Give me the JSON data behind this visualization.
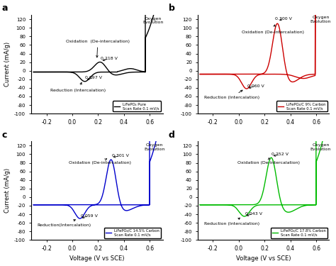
{
  "subplots": [
    {
      "label": "a",
      "color": "black",
      "legend_text": "LiFePO₄ Pure\nScan Rate 0.1 mV/s",
      "ox_voltage": "0.218 V",
      "red_voltage": "0.097 V",
      "ylim": [
        -100,
        130
      ],
      "yticks": [
        -100,
        -80,
        -60,
        -40,
        -20,
        0,
        20,
        40,
        60,
        80,
        100,
        120
      ]
    },
    {
      "label": "b",
      "color": "#cc0000",
      "legend_text": "LiFePO₄/C 9% Carbon\nScan Rate 0.1 mV/s",
      "ox_voltage": "0.300 V",
      "red_voltage": "0.060 V",
      "ylim": [
        -100,
        130
      ],
      "yticks": [
        -100,
        -80,
        -60,
        -40,
        -20,
        0,
        20,
        40,
        60,
        80,
        100,
        120
      ]
    },
    {
      "label": "c",
      "color": "#0000cc",
      "legend_text": "LiFePO₄/C 14.5% Carbon\nScan Rate 0.1 mV/s",
      "ox_voltage": "0.301 V",
      "red_voltage": "0.059 V",
      "ylim": [
        -100,
        130
      ],
      "yticks": [
        -100,
        -80,
        -60,
        -40,
        -20,
        0,
        20,
        40,
        60,
        80,
        100,
        120
      ]
    },
    {
      "label": "d",
      "color": "#00bb00",
      "legend_text": "LiFePO₄/C 17.8% Carbon\nScan Rate 0.1 mV/s",
      "ox_voltage": "0.252 V",
      "red_voltage": "0.043 V",
      "ylim": [
        -100,
        130
      ],
      "yticks": [
        -100,
        -80,
        -60,
        -40,
        -20,
        0,
        20,
        40,
        60,
        80,
        100,
        120
      ]
    }
  ],
  "xlim": [
    -0.32,
    0.7
  ],
  "xticks": [
    -0.2,
    0.0,
    0.2,
    0.4,
    0.6
  ],
  "xlabel": "Voltage (V vs SCE)",
  "ylabel": "Current (mA/g)"
}
